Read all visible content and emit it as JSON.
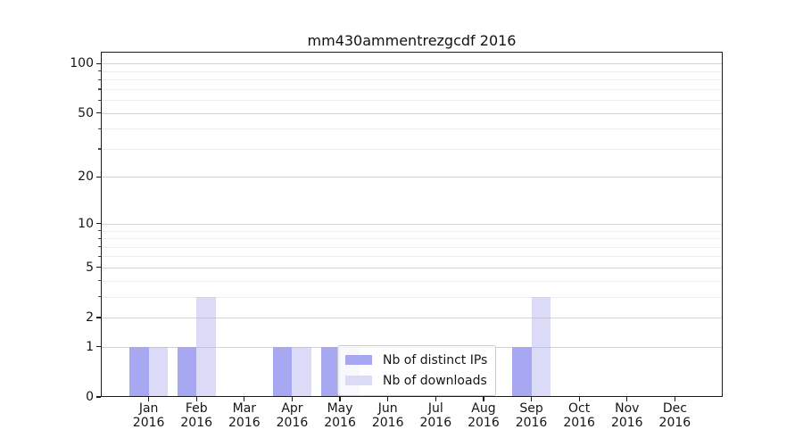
{
  "title": "mm430ammentrezgcdf 2016",
  "chart_data": {
    "type": "bar",
    "title": "mm430ammentrezgcdf 2016",
    "categories": [
      "Jan 2016",
      "Feb 2016",
      "Mar 2016",
      "Apr 2016",
      "May 2016",
      "Jun 2016",
      "Jul 2016",
      "Aug 2016",
      "Sep 2016",
      "Oct 2016",
      "Nov 2016",
      "Dec 2016"
    ],
    "series": [
      {
        "name": "Nb of distinct IPs",
        "color": "#a8a8f2",
        "values": [
          1,
          1,
          0,
          1,
          1,
          0,
          0,
          0,
          1,
          0,
          0,
          0
        ]
      },
      {
        "name": "Nb of downloads",
        "color": "#dbdbf7",
        "values": [
          1,
          3,
          0,
          1,
          1,
          0,
          0,
          0,
          3,
          0,
          0,
          0
        ]
      }
    ],
    "xlabel": "",
    "ylabel": "",
    "yscale": "log1p",
    "ylim": [
      0,
      118
    ],
    "ytick_labels": [
      0,
      1,
      2,
      5,
      10,
      20,
      50,
      100
    ],
    "grid_major": [
      1,
      2,
      5,
      10,
      20,
      50,
      100
    ],
    "grid_minor": [
      3,
      4,
      6,
      7,
      8,
      9,
      30,
      40,
      60,
      70,
      80,
      90
    ],
    "grid": "horizontal",
    "legend_position": "lower-center-inside",
    "bar_group_offset": 0.2,
    "bar_width_fraction": 0.4
  },
  "colors": {
    "background": "#ffffff",
    "axis": "#1a1a1a",
    "text": "#151515",
    "grid_major": "#b0b0b0",
    "grid_minor": "#e8e8e8",
    "legend_border": "#cccccc",
    "bar_distinct_ips": "#a8a8f2",
    "bar_downloads": "#dbdbf7"
  }
}
